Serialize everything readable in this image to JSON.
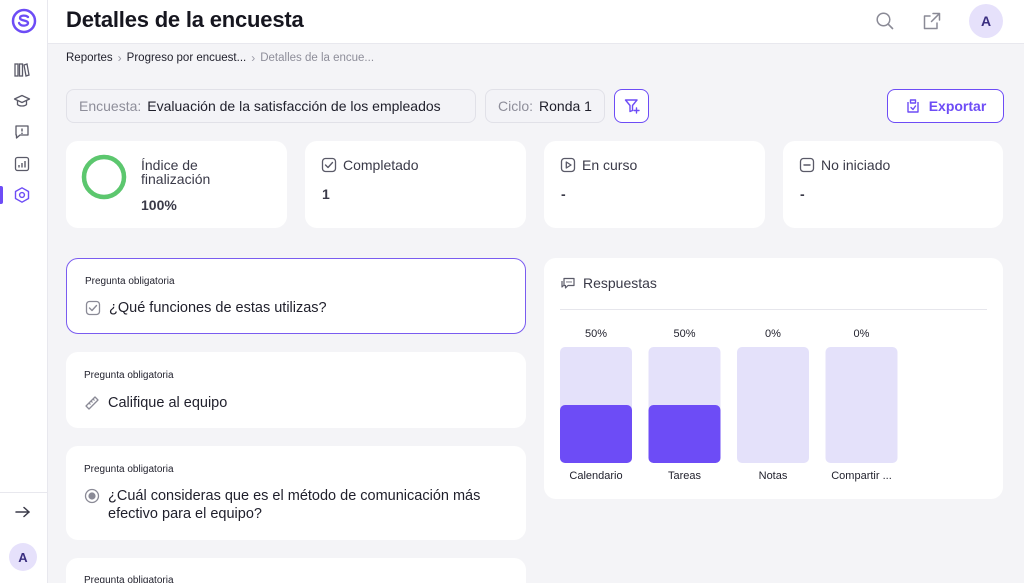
{
  "header": {
    "title": "Detalles de la encuesta",
    "avatar_initial": "A"
  },
  "sidebar": {
    "items": [
      {
        "icon": "library-icon"
      },
      {
        "icon": "graduation-cap-icon"
      },
      {
        "icon": "feedback-icon"
      },
      {
        "icon": "reports-icon"
      },
      {
        "icon": "survey-icon",
        "active": true
      }
    ],
    "avatar_initial": "A"
  },
  "breadcrumb": [
    "Reportes",
    "Progreso por encuest...",
    "Detalles de la encue..."
  ],
  "filters": {
    "survey_label": "Encuesta:",
    "survey_value": "Evaluación de la satisfacción de los empleados",
    "cycle_label": "Ciclo:",
    "cycle_value": "Ronda 1",
    "export_label": "Exportar"
  },
  "stats": {
    "completion": {
      "label": "Índice de finalización",
      "value": "100%",
      "fraction": 1.0,
      "color": "#5cc76e"
    },
    "completed": {
      "label": "Completado",
      "value": "1"
    },
    "in_progress": {
      "label": "En curso",
      "value": "-"
    },
    "not_started": {
      "label": "No iniciado",
      "value": "-"
    }
  },
  "questions": [
    {
      "tag": "Pregunta obligatoria",
      "text": "¿Qué funciones de estas utilizas?",
      "icon": "checkbox-icon"
    },
    {
      "tag": "Pregunta obligatoria",
      "text": "Califique al equipo",
      "icon": "ruler-icon"
    },
    {
      "tag": "Pregunta obligatoria",
      "text": "¿Cuál consideras que es el método de comunicación más efectivo para el equipo?",
      "icon": "radio-icon"
    },
    {
      "tag": "Pregunta obligatoria",
      "text": "",
      "icon": ""
    }
  ],
  "responses": {
    "title": "Respuestas"
  },
  "colors": {
    "accent": "#6d4cf6",
    "bar_track": "#e4e1fa",
    "bar_fill": "#6d4cf6"
  },
  "chart_data": {
    "type": "bar",
    "categories": [
      "Calendario",
      "Tareas",
      "Notas",
      "Compartir ..."
    ],
    "values": [
      50,
      50,
      0,
      0
    ],
    "value_labels": [
      "50%",
      "50%",
      "0%",
      "0%"
    ],
    "ylim": [
      0,
      100
    ],
    "title": "",
    "xlabel": "",
    "ylabel": ""
  }
}
